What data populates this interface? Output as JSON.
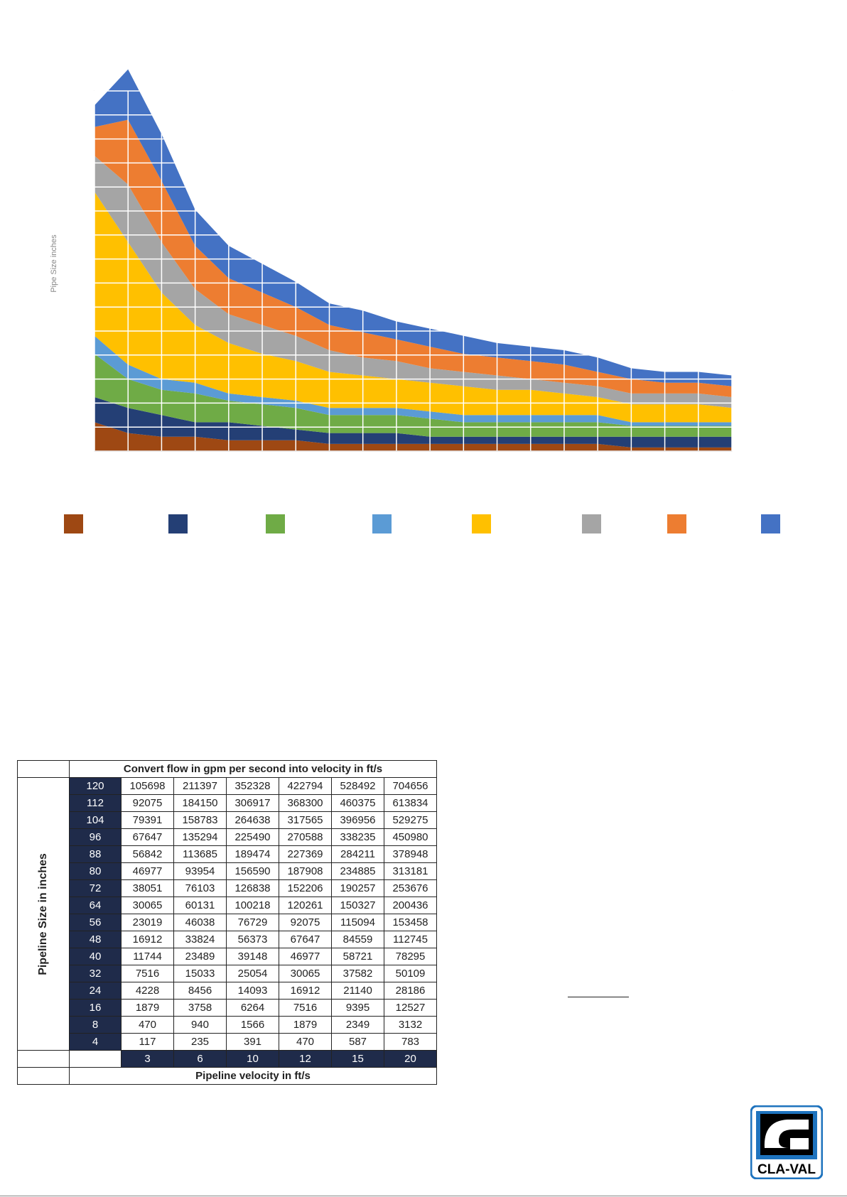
{
  "chart_data": {
    "type": "area",
    "title": "",
    "ylabel": "Pipe Size inches",
    "xlabel": "",
    "stacked": true,
    "points": 20,
    "grid": true,
    "series": [
      {
        "color": "#9e4813",
        "values": [
          8,
          5,
          4,
          4,
          3,
          3,
          3,
          2,
          2,
          2,
          2,
          2,
          2,
          2,
          2,
          2,
          1,
          1,
          1,
          1
        ]
      },
      {
        "color": "#243f75",
        "values": [
          7,
          7,
          6,
          4,
          5,
          4,
          3,
          3,
          3,
          3,
          2,
          2,
          2,
          2,
          2,
          2,
          3,
          3,
          3,
          3
        ]
      },
      {
        "color": "#6fab46",
        "values": [
          12,
          8,
          7,
          8,
          6,
          6,
          6,
          5,
          5,
          5,
          5,
          4,
          4,
          4,
          4,
          4,
          3,
          3,
          3,
          3
        ]
      },
      {
        "color": "#5b9bd5",
        "values": [
          5,
          4,
          3,
          3,
          2,
          2,
          2,
          2,
          2,
          2,
          2,
          2,
          2,
          2,
          2,
          2,
          1,
          1,
          1,
          1
        ]
      },
      {
        "color": "#ffc000",
        "values": [
          40,
          34,
          24,
          16,
          14,
          12,
          11,
          10,
          9,
          8,
          8,
          8,
          7,
          7,
          6,
          5,
          5,
          5,
          5,
          4
        ]
      },
      {
        "color": "#a5a5a5",
        "values": [
          10,
          16,
          14,
          10,
          8,
          8,
          7,
          6,
          5,
          5,
          4,
          4,
          4,
          3,
          3,
          3,
          3,
          3,
          3,
          3
        ]
      },
      {
        "color": "#ed7d31",
        "values": [
          8,
          18,
          17,
          12,
          10,
          9,
          8,
          7,
          7,
          6,
          6,
          5,
          5,
          5,
          5,
          4,
          4,
          3,
          3,
          3
        ]
      },
      {
        "color": "#4472c4",
        "values": [
          6,
          14,
          13,
          10,
          9,
          8,
          7,
          6,
          6,
          5,
          5,
          5,
          4,
          4,
          4,
          4,
          3,
          3,
          3,
          3
        ]
      }
    ]
  },
  "legend": {
    "colors": [
      "#9e4813",
      "#243f75",
      "#6fab46",
      "#5b9bd5",
      "#ffc000",
      "#a5a5a5",
      "#ed7d31",
      "#4472c4"
    ]
  },
  "table": {
    "title": "Convert flow in gpm  per second into velocity in ft/s",
    "row_header": "Pipeline Size  in inches",
    "footer": "Pipeline velocity in ft/s",
    "velocities": [
      "3",
      "6",
      "10",
      "12",
      "15",
      "20"
    ],
    "rows": [
      {
        "size": "120",
        "vals": [
          "105698",
          "211397",
          "352328",
          "422794",
          "528492",
          "704656"
        ]
      },
      {
        "size": "112",
        "vals": [
          "92075",
          "184150",
          "306917",
          "368300",
          "460375",
          "613834"
        ]
      },
      {
        "size": "104",
        "vals": [
          "79391",
          "158783",
          "264638",
          "317565",
          "396956",
          "529275"
        ]
      },
      {
        "size": "96",
        "vals": [
          "67647",
          "135294",
          "225490",
          "270588",
          "338235",
          "450980"
        ]
      },
      {
        "size": "88",
        "vals": [
          "56842",
          "113685",
          "189474",
          "227369",
          "284211",
          "378948"
        ]
      },
      {
        "size": "80",
        "vals": [
          "46977",
          "93954",
          "156590",
          "187908",
          "234885",
          "313181"
        ]
      },
      {
        "size": "72",
        "vals": [
          "38051",
          "76103",
          "126838",
          "152206",
          "190257",
          "253676"
        ]
      },
      {
        "size": "64",
        "vals": [
          "30065",
          "60131",
          "100218",
          "120261",
          "150327",
          "200436"
        ]
      },
      {
        "size": "56",
        "vals": [
          "23019",
          "46038",
          "76729",
          "92075",
          "115094",
          "153458"
        ]
      },
      {
        "size": "48",
        "vals": [
          "16912",
          "33824",
          "56373",
          "67647",
          "84559",
          "112745"
        ]
      },
      {
        "size": "40",
        "vals": [
          "11744",
          "23489",
          "39148",
          "46977",
          "58721",
          "78295"
        ]
      },
      {
        "size": "32",
        "vals": [
          "7516",
          "15033",
          "25054",
          "30065",
          "37582",
          "50109"
        ]
      },
      {
        "size": "24",
        "vals": [
          "4228",
          "8456",
          "14093",
          "16912",
          "21140",
          "28186"
        ]
      },
      {
        "size": "16",
        "vals": [
          "1879",
          "3758",
          "6264",
          "7516",
          "9395",
          "12527"
        ]
      },
      {
        "size": "8",
        "vals": [
          "470",
          "940",
          "1566",
          "1879",
          "2349",
          "3132"
        ]
      },
      {
        "size": "4",
        "vals": [
          "117",
          "235",
          "391",
          "470",
          "587",
          "783"
        ]
      }
    ]
  },
  "logo": {
    "text": "CLA-VAL",
    "color": "#1e73be"
  }
}
